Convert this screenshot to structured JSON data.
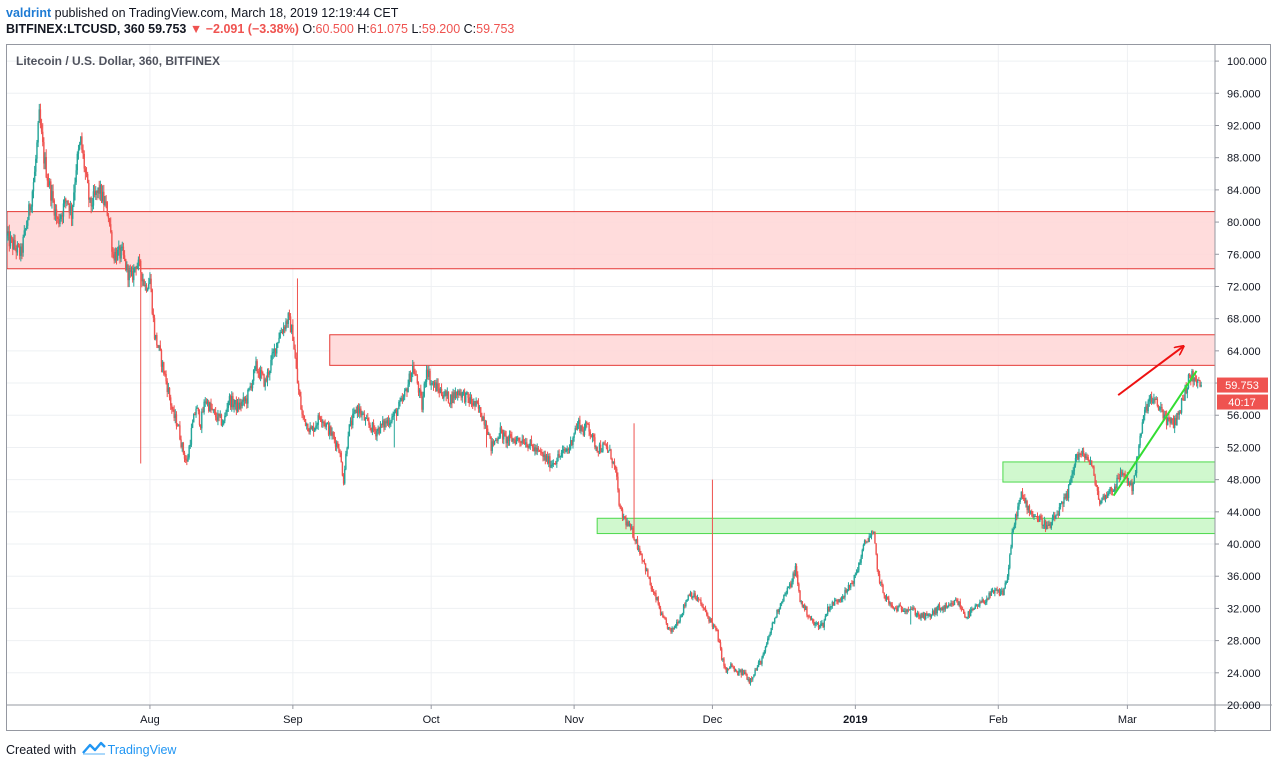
{
  "header": {
    "user": "valdrint",
    "published_text": "published on TradingView.com, March 18, 2019 12:19:44 CET",
    "symbol": "BITFINEX:LTCUSD, 360",
    "last": "59.753",
    "change_icon": "down-triangle-icon",
    "change": "−2.091 (−3.38%)",
    "o_label": "O:",
    "o_value": "60.500",
    "h_label": "H:",
    "h_value": "61.075",
    "l_label": "L:",
    "l_value": "59.200",
    "c_label": "C:",
    "c_value": "59.753"
  },
  "footer": {
    "created_with": "Created with",
    "brand": "TradingView",
    "logo_icon": "tradingview-logo-icon"
  },
  "colors": {
    "up": "#26a69a",
    "down": "#ef5350",
    "resistance_fill": "#ffd6d6",
    "resistance_border": "#e53935",
    "support_fill": "#c8f7c5",
    "support_border": "#4cd94c",
    "trend_up": "#33dd33",
    "trend_red": "#ee1111"
  },
  "chart_data": {
    "type": "candlestick",
    "title": "Litecoin / U.S. Dollar, 360, BITFINEX",
    "ylim": [
      20,
      102
    ],
    "y_ticks": [
      "100.000",
      "96.000",
      "92.000",
      "88.000",
      "84.000",
      "80.000",
      "76.000",
      "72.000",
      "68.000",
      "64.000",
      "60.000",
      "56.000",
      "52.000",
      "48.000",
      "44.000",
      "40.000",
      "36.000",
      "32.000",
      "28.000",
      "24.000",
      "20.000"
    ],
    "x_ticks": [
      "Aug",
      "Sep",
      "Oct",
      "Nov",
      "Dec",
      "2019",
      "Feb",
      "Mar"
    ],
    "x_tick_days": [
      31,
      62,
      92,
      123,
      153,
      184,
      215,
      243
    ],
    "bold_x_tick": "2019",
    "date_range_days": [
      0,
      262
    ],
    "price_label": "59.753",
    "countdown_label": "40:17",
    "path": [
      [
        0,
        78
      ],
      [
        3,
        76
      ],
      [
        5,
        82
      ],
      [
        6,
        86
      ],
      [
        7,
        93
      ],
      [
        8,
        88
      ],
      [
        9,
        85
      ],
      [
        11,
        80
      ],
      [
        13,
        83
      ],
      [
        14,
        81
      ],
      [
        15,
        87
      ],
      [
        16,
        90
      ],
      [
        18,
        82
      ],
      [
        20,
        84
      ],
      [
        22,
        81
      ],
      [
        23,
        76
      ],
      [
        25,
        76
      ],
      [
        26,
        74
      ],
      [
        27,
        73
      ],
      [
        28,
        75
      ],
      [
        29,
        74
      ],
      [
        30,
        72
      ],
      [
        31,
        73
      ],
      [
        32,
        66
      ],
      [
        33,
        64
      ],
      [
        35,
        59
      ],
      [
        36,
        56
      ],
      [
        37,
        55
      ],
      [
        38,
        52
      ],
      [
        39,
        50
      ],
      [
        40,
        54
      ],
      [
        41,
        57
      ],
      [
        42,
        55
      ],
      [
        43,
        58
      ],
      [
        45,
        56
      ],
      [
        47,
        55
      ],
      [
        48,
        58
      ],
      [
        50,
        57
      ],
      [
        52,
        58
      ],
      [
        54,
        62
      ],
      [
        56,
        60
      ],
      [
        58,
        64
      ],
      [
        59,
        66
      ],
      [
        61,
        68
      ],
      [
        62,
        66
      ],
      [
        63,
        60
      ],
      [
        64,
        56
      ],
      [
        66,
        54
      ],
      [
        68,
        56
      ],
      [
        70,
        54
      ],
      [
        72,
        52
      ],
      [
        73,
        48
      ],
      [
        74,
        54
      ],
      [
        76,
        57
      ],
      [
        78,
        55
      ],
      [
        80,
        54
      ],
      [
        82,
        55
      ],
      [
        84,
        56
      ],
      [
        86,
        58
      ],
      [
        88,
        62
      ],
      [
        89,
        60
      ],
      [
        90,
        57
      ],
      [
        91,
        62
      ],
      [
        92,
        60
      ],
      [
        94,
        59
      ],
      [
        96,
        58
      ],
      [
        98,
        59
      ],
      [
        100,
        58
      ],
      [
        102,
        57
      ],
      [
        104,
        55
      ],
      [
        105,
        52
      ],
      [
        106,
        53
      ],
      [
        107,
        54
      ],
      [
        108,
        53
      ],
      [
        110,
        53
      ],
      [
        112,
        53
      ],
      [
        114,
        52
      ],
      [
        116,
        51
      ],
      [
        118,
        50
      ],
      [
        120,
        51
      ],
      [
        122,
        52
      ],
      [
        123,
        54
      ],
      [
        124,
        55
      ],
      [
        125,
        54
      ],
      [
        126,
        55
      ],
      [
        127,
        53
      ],
      [
        128,
        52
      ],
      [
        130,
        52
      ],
      [
        131,
        51
      ],
      [
        132,
        49
      ],
      [
        133,
        44
      ],
      [
        134,
        43
      ],
      [
        135,
        42
      ],
      [
        136,
        41
      ],
      [
        138,
        38
      ],
      [
        140,
        34
      ],
      [
        141,
        33
      ],
      [
        142,
        31
      ],
      [
        144,
        29
      ],
      [
        146,
        31
      ],
      [
        148,
        34
      ],
      [
        150,
        33
      ],
      [
        152,
        31
      ],
      [
        154,
        29
      ],
      [
        155,
        26
      ],
      [
        156,
        24
      ],
      [
        157,
        25
      ],
      [
        158,
        24
      ],
      [
        160,
        24
      ],
      [
        161,
        23
      ],
      [
        162,
        24
      ],
      [
        164,
        26
      ],
      [
        166,
        30
      ],
      [
        168,
        33
      ],
      [
        170,
        35
      ],
      [
        171,
        37
      ],
      [
        172,
        33
      ],
      [
        173,
        32
      ],
      [
        175,
        30
      ],
      [
        177,
        30
      ],
      [
        178,
        32
      ],
      [
        180,
        33
      ],
      [
        182,
        34
      ],
      [
        184,
        36
      ],
      [
        186,
        40
      ],
      [
        187,
        41
      ],
      [
        188,
        41
      ],
      [
        189,
        36
      ],
      [
        190,
        34
      ],
      [
        192,
        32
      ],
      [
        194,
        32
      ],
      [
        196,
        32
      ],
      [
        198,
        31
      ],
      [
        200,
        31
      ],
      [
        202,
        32
      ],
      [
        204,
        32
      ],
      [
        206,
        33
      ],
      [
        208,
        31
      ],
      [
        210,
        32
      ],
      [
        212,
        33
      ],
      [
        214,
        34
      ],
      [
        216,
        34
      ],
      [
        217,
        36
      ],
      [
        218,
        41
      ],
      [
        219,
        44
      ],
      [
        220,
        46
      ],
      [
        221,
        45
      ],
      [
        222,
        44
      ],
      [
        224,
        43
      ],
      [
        226,
        42
      ],
      [
        228,
        44
      ],
      [
        230,
        46
      ],
      [
        231,
        49
      ],
      [
        232,
        51
      ],
      [
        234,
        51
      ],
      [
        235,
        50
      ],
      [
        236,
        48
      ],
      [
        237,
        45
      ],
      [
        238,
        46
      ],
      [
        240,
        47
      ],
      [
        242,
        49
      ],
      [
        243,
        48
      ],
      [
        244,
        47
      ],
      [
        245,
        50
      ],
      [
        246,
        54
      ],
      [
        247,
        57
      ],
      [
        248,
        58
      ],
      [
        250,
        57
      ],
      [
        251,
        56
      ],
      [
        252,
        55
      ],
      [
        253,
        55
      ],
      [
        254,
        56
      ],
      [
        255,
        58
      ],
      [
        256,
        60
      ],
      [
        257,
        61
      ],
      [
        258,
        60
      ],
      [
        259,
        59.75
      ]
    ],
    "spikes": [
      [
        29,
        50
      ],
      [
        63,
        73
      ],
      [
        72,
        52
      ],
      [
        84,
        52
      ],
      [
        104,
        52
      ],
      [
        136,
        55
      ],
      [
        153,
        48
      ],
      [
        196,
        30
      ],
      [
        229,
        44
      ]
    ],
    "zones": [
      {
        "kind": "resistance",
        "d0": 0,
        "d1": 262,
        "p0": 74.2,
        "p1": 81.3
      },
      {
        "kind": "resistance",
        "d0": 70,
        "d1": 262,
        "p0": 62.2,
        "p1": 66.0
      },
      {
        "kind": "support",
        "d0": 216,
        "d1": 262,
        "p0": 47.7,
        "p1": 50.2
      },
      {
        "kind": "support",
        "d0": 128,
        "d1": 262,
        "p0": 41.3,
        "p1": 43.2
      }
    ],
    "trendlines": [
      {
        "color": "trend_up",
        "arrow": false,
        "from": [
          240,
          46
        ],
        "to": [
          258,
          61.5
        ]
      },
      {
        "color": "trend_red",
        "arrow": true,
        "from": [
          241,
          58.5
        ],
        "to": [
          255,
          64.5
        ]
      }
    ]
  }
}
